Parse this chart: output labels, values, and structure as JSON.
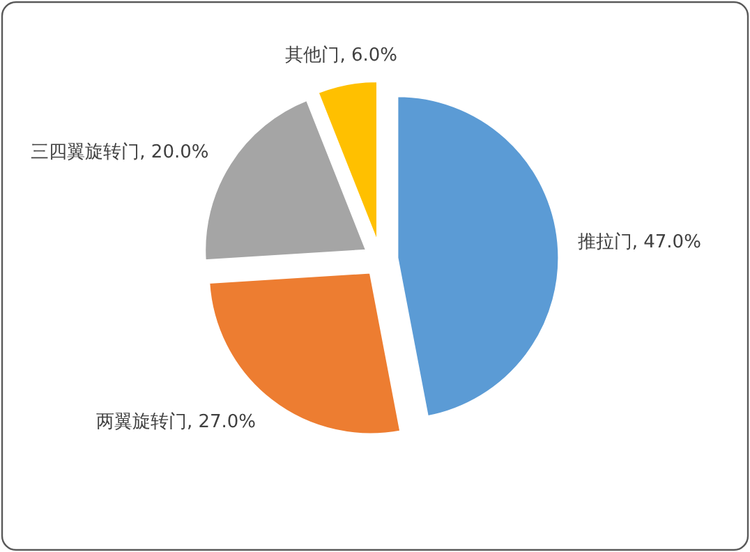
{
  "chart_data": {
    "type": "pie",
    "categories": [
      "推拉门",
      "两翼旋转门",
      "三四翼旋转门",
      "其他门"
    ],
    "values": [
      47.0,
      27.0,
      20.0,
      6.0
    ],
    "value_labels": [
      "47.0%",
      "27.0%",
      "20.0%",
      "6.0%"
    ],
    "colors": [
      "#5b9bd5",
      "#ed7d31",
      "#a5a5a5",
      "#ffc000"
    ],
    "legend": false
  }
}
